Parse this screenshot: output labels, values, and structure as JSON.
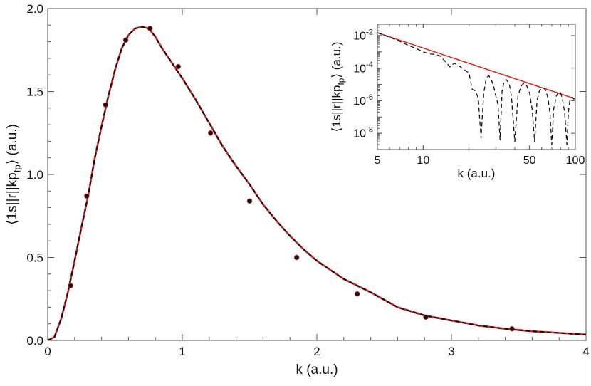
{
  "chart_data": [
    {
      "type": "line",
      "title": "",
      "xlabel": "k (a.u.)",
      "ylabel": "⟨1s||r||kp_fp⟩ (a.u.)",
      "ylabel_main": "⟨1s||r||kp",
      "ylabel_sub": "fp",
      "ylabel_end": "⟩ (a.u.)",
      "xlim": [
        0,
        4
      ],
      "ylim": [
        0,
        2.0
      ],
      "x_ticks": [
        {
          "value": 0,
          "label": "0"
        },
        {
          "value": 1,
          "label": "1"
        },
        {
          "value": 2,
          "label": "2"
        },
        {
          "value": 3,
          "label": "3"
        },
        {
          "value": 4,
          "label": "4"
        }
      ],
      "y_ticks": [
        {
          "value": 0,
          "label": "0.0"
        },
        {
          "value": 0.5,
          "label": "0.5"
        },
        {
          "value": 1.0,
          "label": "1.0"
        },
        {
          "value": 1.5,
          "label": "1.5"
        },
        {
          "value": 2.0,
          "label": "2.0"
        }
      ],
      "grid": false,
      "series": [
        {
          "style": "solid-red",
          "color": "#e02020",
          "x": [
            0,
            0.05,
            0.1,
            0.15,
            0.2,
            0.25,
            0.3,
            0.35,
            0.4,
            0.45,
            0.5,
            0.55,
            0.6,
            0.65,
            0.7,
            0.75,
            0.8,
            0.85,
            0.9,
            0.95,
            1.0,
            1.1,
            1.2,
            1.3,
            1.4,
            1.5,
            1.6,
            1.7,
            1.8,
            1.9,
            2.0,
            2.2,
            2.4,
            2.6,
            2.8,
            3.0,
            3.2,
            3.4,
            3.6,
            3.8,
            4.0
          ],
          "y": [
            0,
            0.02,
            0.13,
            0.29,
            0.48,
            0.68,
            0.87,
            1.1,
            1.29,
            1.47,
            1.63,
            1.76,
            1.84,
            1.88,
            1.89,
            1.88,
            1.83,
            1.76,
            1.7,
            1.64,
            1.58,
            1.45,
            1.31,
            1.17,
            1.05,
            0.94,
            0.82,
            0.72,
            0.63,
            0.55,
            0.48,
            0.37,
            0.29,
            0.2,
            0.15,
            0.12,
            0.09,
            0.07,
            0.055,
            0.045,
            0.035
          ]
        },
        {
          "style": "dashed-black",
          "color": "#111111",
          "x": [
            0,
            0.05,
            0.1,
            0.15,
            0.2,
            0.25,
            0.3,
            0.35,
            0.4,
            0.45,
            0.5,
            0.55,
            0.6,
            0.65,
            0.7,
            0.75,
            0.8,
            0.85,
            0.9,
            0.95,
            1.0,
            1.1,
            1.2,
            1.3,
            1.4,
            1.5,
            1.6,
            1.7,
            1.8,
            1.9,
            2.0,
            2.2,
            2.4,
            2.6,
            2.8,
            3.0,
            3.2,
            3.4,
            3.6,
            3.8,
            4.0
          ],
          "y": [
            0,
            0.02,
            0.13,
            0.29,
            0.48,
            0.68,
            0.87,
            1.1,
            1.29,
            1.47,
            1.63,
            1.76,
            1.84,
            1.88,
            1.89,
            1.88,
            1.83,
            1.76,
            1.7,
            1.64,
            1.58,
            1.45,
            1.31,
            1.17,
            1.05,
            0.94,
            0.82,
            0.72,
            0.63,
            0.55,
            0.48,
            0.37,
            0.29,
            0.2,
            0.15,
            0.12,
            0.09,
            0.07,
            0.055,
            0.045,
            0.035
          ]
        },
        {
          "style": "points",
          "color": "#111111",
          "x": [
            0.17,
            0.29,
            0.43,
            0.58,
            0.76,
            0.97,
            1.21,
            1.5,
            1.85,
            2.3,
            2.81,
            3.45
          ],
          "y": [
            0.33,
            0.87,
            1.42,
            1.81,
            1.88,
            1.65,
            1.25,
            0.84,
            0.5,
            0.28,
            0.14,
            0.07
          ]
        }
      ]
    },
    {
      "type": "line",
      "title": "",
      "xlabel": "k (a.u.)",
      "ylabel": "⟨1s||r||kp_fp⟩ (a.u.)",
      "ylabel_main": "⟨1s||r||kp",
      "ylabel_sub": "fp",
      "ylabel_end": "⟩ (a.u.)",
      "x_scale": "log",
      "y_scale": "log",
      "xlim": [
        5,
        100
      ],
      "ylim": [
        1e-09,
        0.05
      ],
      "x_ticks": [
        {
          "value": 5,
          "label": "5"
        },
        {
          "value": 10,
          "label": "10"
        },
        {
          "value": 50,
          "label": "50"
        },
        {
          "value": 100,
          "label": "100"
        }
      ],
      "y_ticks": [
        {
          "value": 0.01,
          "label": "10",
          "exp": "-2"
        },
        {
          "value": 0.0001,
          "label": "10",
          "exp": "-4"
        },
        {
          "value": 1e-06,
          "label": "10",
          "exp": "-6"
        },
        {
          "value": 1e-08,
          "label": "10",
          "exp": "-8"
        }
      ],
      "grid": false,
      "series": [
        {
          "style": "solid-red",
          "color": "#e02020",
          "x": [
            5,
            100
          ],
          "y": [
            0.015,
            1.3e-06
          ]
        },
        {
          "style": "dashed-black",
          "color": "#111111",
          "x": [
            5,
            6,
            7,
            8,
            9,
            10,
            11,
            12,
            13,
            14,
            15,
            16,
            17,
            18,
            19,
            20,
            21,
            22,
            23,
            24,
            25,
            26,
            27,
            28,
            29,
            30,
            31,
            32,
            33,
            34,
            35,
            36,
            37,
            38,
            40,
            42,
            44,
            46,
            48,
            50,
            52,
            54,
            56,
            58,
            60,
            62,
            64,
            66,
            68,
            70,
            72,
            75,
            78,
            80,
            82,
            85,
            88,
            90,
            92,
            94,
            96,
            98,
            100
          ],
          "y": [
            0.015,
            0.008,
            0.0045,
            0.0025,
            0.0016,
            0.001,
            0.00075,
            0.0007,
            0.00055,
            0.00025,
            0.00012,
            0.0002,
            0.00015,
            0.0001,
            7e-05,
            5e-05,
            5e-06,
            4e-06,
            1.5e-06,
            5e-09,
            3e-06,
            2.5e-05,
            3.5e-05,
            2e-05,
            8e-06,
            2e-06,
            6e-07,
            4e-09,
            4e-06,
            1.5e-05,
            2e-05,
            1.5e-05,
            8e-06,
            2e-06,
            3e-09,
            2e-06,
            8e-06,
            1.2e-05,
            8e-06,
            3e-06,
            3e-07,
            3e-09,
            1e-06,
            4e-06,
            6e-06,
            6e-06,
            4e-06,
            1.5e-06,
            2e-07,
            2e-09,
            3e-07,
            2e-06,
            3.5e-06,
            3e-06,
            1.5e-06,
            2e-07,
            2e-09,
            2e-07,
            1e-06,
            1.5e-06,
            1.6e-06,
            1.2e-06,
            8e-07
          ]
        }
      ]
    }
  ]
}
